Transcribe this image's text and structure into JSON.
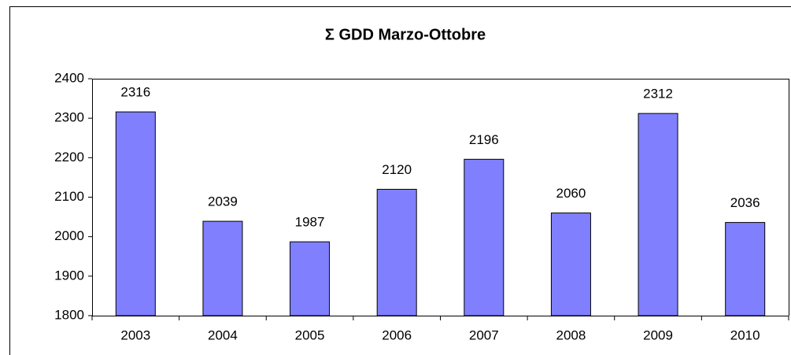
{
  "chart_data": {
    "type": "bar",
    "title": "Σ GDD Marzo-Ottobre",
    "categories": [
      "2003",
      "2004",
      "2005",
      "2006",
      "2007",
      "2008",
      "2009",
      "2010"
    ],
    "values": [
      2316,
      2039,
      1987,
      2120,
      2196,
      2060,
      2312,
      2036
    ],
    "color": "#8080ff",
    "ylim": [
      1800,
      2400
    ],
    "yticks": [
      1800,
      1900,
      2000,
      2100,
      2200,
      2300,
      2400
    ],
    "grid": false,
    "data_labels": true
  }
}
